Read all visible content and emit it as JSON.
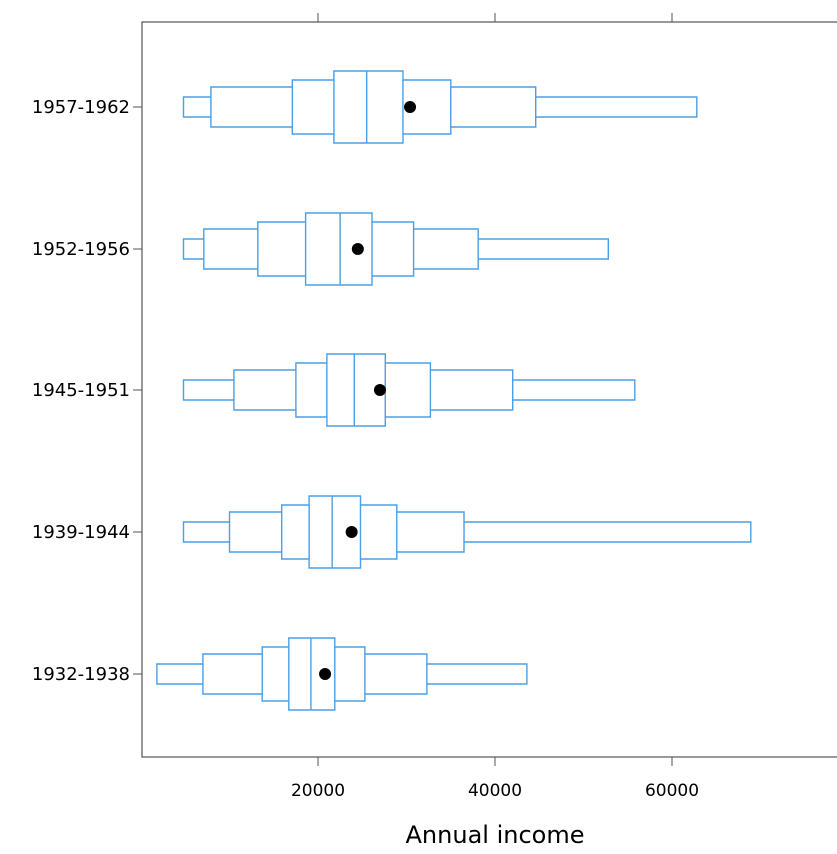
{
  "chart_data": {
    "type": "letter-value",
    "title": "",
    "xlabel": "Annual income",
    "ylabel": "",
    "xlim": [
      0,
      78000
    ],
    "x_ticks": [
      20000,
      40000,
      60000
    ],
    "x_tick_labels": [
      "20000",
      "40000",
      "60000"
    ],
    "categories": [
      "1932-1938",
      "1939-1944",
      "1945-1951",
      "1952-1956",
      "1957-1962"
    ],
    "groups": [
      {
        "label": "1932-1938",
        "median": 19200,
        "mean": 20800,
        "levels": [
          [
            16700,
            21900
          ],
          [
            13700,
            25300
          ],
          [
            7000,
            32300
          ],
          [
            1800,
            43600
          ]
        ]
      },
      {
        "label": "1939-1944",
        "median": 21600,
        "mean": 23800,
        "levels": [
          [
            19000,
            24800
          ],
          [
            15900,
            28900
          ],
          [
            10000,
            36500
          ],
          [
            4800,
            68900
          ]
        ]
      },
      {
        "label": "1945-1951",
        "median": 24100,
        "mean": 27000,
        "levels": [
          [
            21000,
            27600
          ],
          [
            17500,
            32700
          ],
          [
            10500,
            42000
          ],
          [
            4800,
            55800
          ]
        ]
      },
      {
        "label": "1952-1956",
        "median": 22500,
        "mean": 24500,
        "levels": [
          [
            18600,
            26100
          ],
          [
            13200,
            30800
          ],
          [
            7100,
            38100
          ],
          [
            4800,
            52800
          ]
        ]
      },
      {
        "label": "1957-1962",
        "median": 25500,
        "mean": 30400,
        "levels": [
          [
            21800,
            29600
          ],
          [
            17100,
            35000
          ],
          [
            7900,
            44600
          ],
          [
            4800,
            62800
          ]
        ]
      }
    ],
    "colors": {
      "box_stroke": "#4a9fe6",
      "mean_marker": "#000000",
      "axis": "#555555"
    },
    "grid": false,
    "legend": "none"
  }
}
